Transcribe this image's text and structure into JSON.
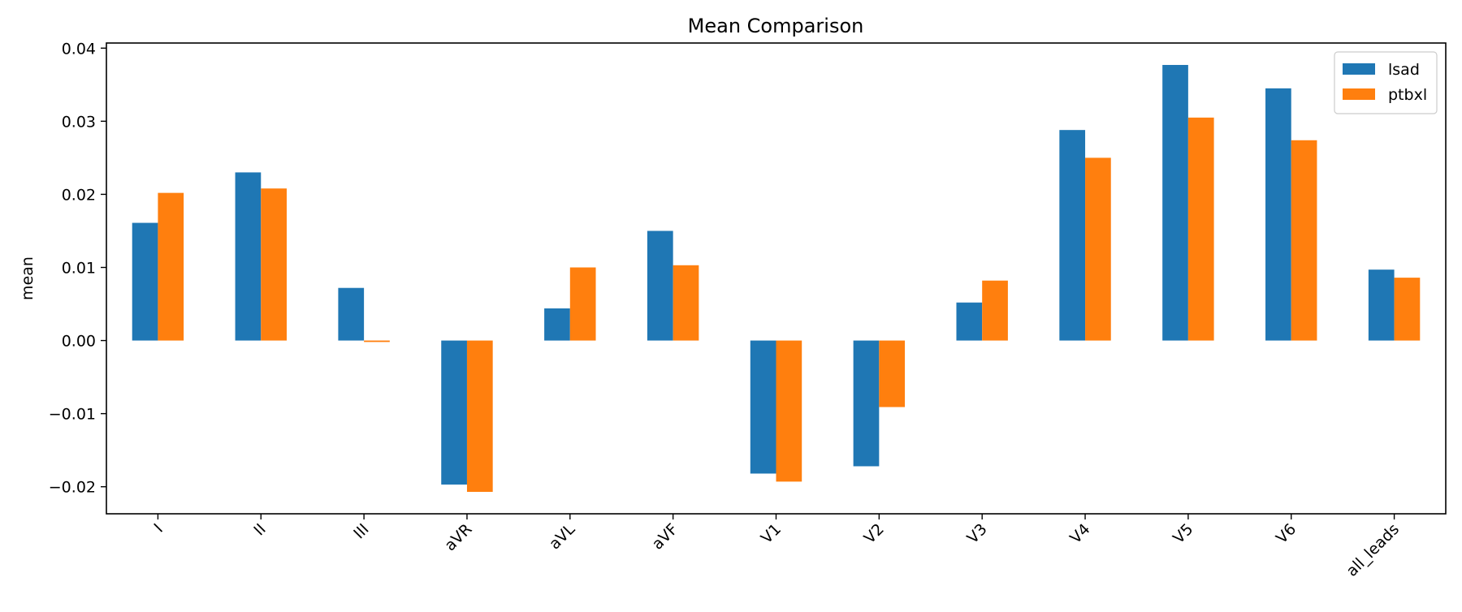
{
  "chart_data": {
    "type": "bar",
    "title": "Mean Comparison",
    "xlabel": "",
    "ylabel": "mean",
    "categories": [
      "I",
      "II",
      "III",
      "aVR",
      "aVL",
      "aVF",
      "V1",
      "V2",
      "V3",
      "V4",
      "V5",
      "V6",
      "all_leads"
    ],
    "series": [
      {
        "name": "lsad",
        "color": "#1f77b4",
        "values": [
          0.0161,
          0.023,
          0.0072,
          -0.0197,
          0.0044,
          0.015,
          -0.0182,
          -0.0172,
          0.0052,
          0.0288,
          0.0377,
          0.0345,
          0.0097
        ]
      },
      {
        "name": "ptbxl",
        "color": "#ff7f0e",
        "values": [
          0.0202,
          0.0208,
          -0.0002,
          -0.0207,
          0.01,
          0.0103,
          -0.0193,
          -0.0091,
          0.0082,
          0.025,
          0.0305,
          0.0274,
          0.0086
        ]
      }
    ],
    "ylim": [
      -0.0237,
      0.0407
    ],
    "yticks": [
      -0.02,
      -0.01,
      0.0,
      0.01,
      0.02,
      0.03,
      0.04
    ],
    "ytick_labels": [
      "−0.02",
      "−0.01",
      "0.00",
      "0.01",
      "0.02",
      "0.03",
      "0.04"
    ],
    "grid": false,
    "legend_position": "top-right"
  }
}
